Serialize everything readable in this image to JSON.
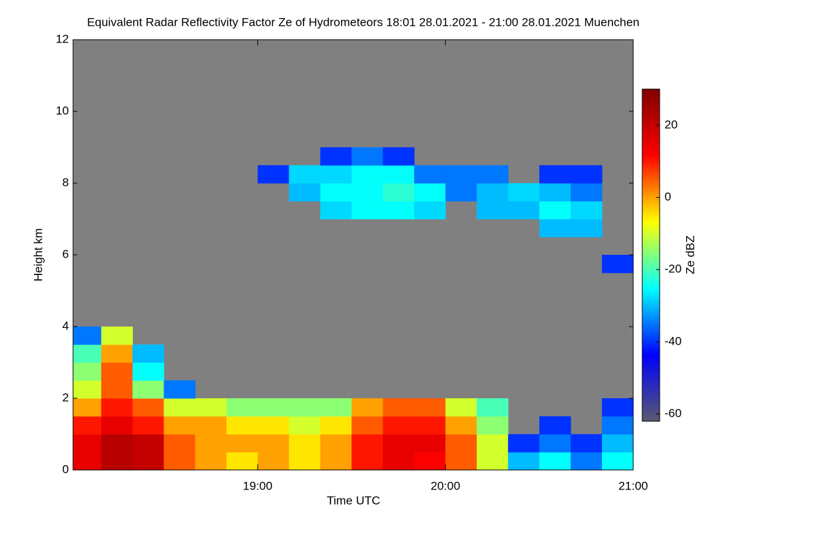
{
  "chart_data": {
    "type": "heatmap",
    "title": "Equivalent Radar Reflectivity Factor Ze of Hydrometeors   18:01 28.01.2021 - 21:00 28.01.2021 Muenchen",
    "xlabel": "Time UTC",
    "ylabel": "Height km",
    "colorbar_label": "Ze dBZ",
    "xlim": [
      18.0167,
      21
    ],
    "xticks": [
      {
        "value": 19,
        "label": "19:00"
      },
      {
        "value": 20,
        "label": "20:00"
      },
      {
        "value": 21,
        "label": "21:00"
      }
    ],
    "ylim": [
      0,
      12
    ],
    "yticks": [
      0,
      2,
      4,
      6,
      8,
      10,
      12
    ],
    "zlim": [
      -62,
      30
    ],
    "zticks": [
      20,
      0,
      -20,
      -40,
      -60
    ],
    "background": "#808080",
    "colormap": [
      "#5a5a6e",
      "#0000ff",
      "#00ffff",
      "#ffff00",
      "#ff0000",
      "#800000"
    ],
    "x": [
      18.0833,
      18.25,
      18.4167,
      18.5833,
      18.75,
      18.9167,
      19.0833,
      19.25,
      19.4167,
      19.5833,
      19.75,
      19.9167,
      20.0833,
      20.25,
      20.4167,
      20.5833,
      20.75,
      20.9167
    ],
    "y": [
      0.25,
      0.75,
      1.25,
      1.75,
      2.25,
      2.75,
      3.25,
      3.75,
      4.25,
      4.75,
      5.25,
      5.75,
      6.25,
      6.75,
      7.25,
      7.75,
      8.25,
      8.75
    ],
    "z": [
      [
        15,
        22,
        20,
        5,
        0,
        -5,
        0,
        -5,
        0,
        10,
        15,
        12,
        5,
        -10,
        -30,
        -25,
        -35,
        -25
      ],
      [
        15,
        22,
        20,
        5,
        0,
        0,
        0,
        -5,
        0,
        10,
        15,
        15,
        5,
        -10,
        -40,
        -35,
        -40,
        -30
      ],
      [
        10,
        15,
        10,
        0,
        0,
        -5,
        -5,
        -10,
        -5,
        5,
        10,
        10,
        0,
        -15,
        null,
        -40,
        null,
        -35
      ],
      [
        0,
        10,
        5,
        -10,
        -10,
        -15,
        -15,
        -15,
        -15,
        0,
        5,
        5,
        -10,
        -20,
        null,
        null,
        null,
        -40
      ],
      [
        -10,
        5,
        -15,
        -35,
        null,
        null,
        null,
        null,
        null,
        null,
        null,
        null,
        null,
        null,
        null,
        null,
        null,
        null
      ],
      [
        -15,
        5,
        -25,
        null,
        null,
        null,
        null,
        null,
        null,
        null,
        null,
        null,
        null,
        null,
        null,
        null,
        null,
        null
      ],
      [
        -20,
        0,
        -30,
        null,
        null,
        null,
        null,
        null,
        null,
        null,
        null,
        null,
        null,
        null,
        null,
        null,
        null,
        null
      ],
      [
        -35,
        -10,
        null,
        null,
        null,
        null,
        null,
        null,
        null,
        null,
        null,
        null,
        null,
        null,
        null,
        null,
        null,
        null
      ],
      [
        null,
        null,
        null,
        null,
        null,
        null,
        null,
        null,
        null,
        null,
        null,
        null,
        null,
        null,
        null,
        null,
        null,
        null
      ],
      [
        null,
        null,
        null,
        null,
        null,
        null,
        null,
        null,
        null,
        null,
        null,
        null,
        null,
        null,
        null,
        null,
        null,
        null
      ],
      [
        null,
        null,
        null,
        null,
        null,
        null,
        null,
        null,
        null,
        null,
        null,
        null,
        null,
        null,
        null,
        null,
        null,
        null
      ],
      [
        null,
        null,
        null,
        null,
        null,
        null,
        null,
        null,
        null,
        null,
        null,
        null,
        null,
        null,
        null,
        null,
        null,
        -40
      ],
      [
        null,
        null,
        null,
        null,
        null,
        null,
        null,
        null,
        null,
        null,
        null,
        null,
        null,
        null,
        null,
        null,
        null,
        null
      ],
      [
        null,
        null,
        null,
        null,
        null,
        null,
        null,
        null,
        null,
        null,
        null,
        null,
        null,
        null,
        null,
        -30,
        -30,
        null
      ],
      [
        null,
        null,
        null,
        null,
        null,
        null,
        null,
        null,
        -28,
        -25,
        -25,
        -28,
        null,
        -30,
        -30,
        -25,
        -28,
        null
      ],
      [
        null,
        null,
        null,
        null,
        null,
        null,
        null,
        -30,
        -25,
        -25,
        -22,
        -25,
        -35,
        -30,
        -28,
        -30,
        -35,
        null
      ],
      [
        null,
        null,
        null,
        null,
        null,
        null,
        -40,
        -28,
        -28,
        -25,
        -25,
        -35,
        -35,
        -35,
        null,
        -40,
        -40,
        null
      ],
      [
        null,
        null,
        null,
        null,
        null,
        null,
        null,
        null,
        -40,
        -35,
        -40,
        null,
        null,
        null,
        null,
        null,
        null,
        null
      ]
    ]
  }
}
